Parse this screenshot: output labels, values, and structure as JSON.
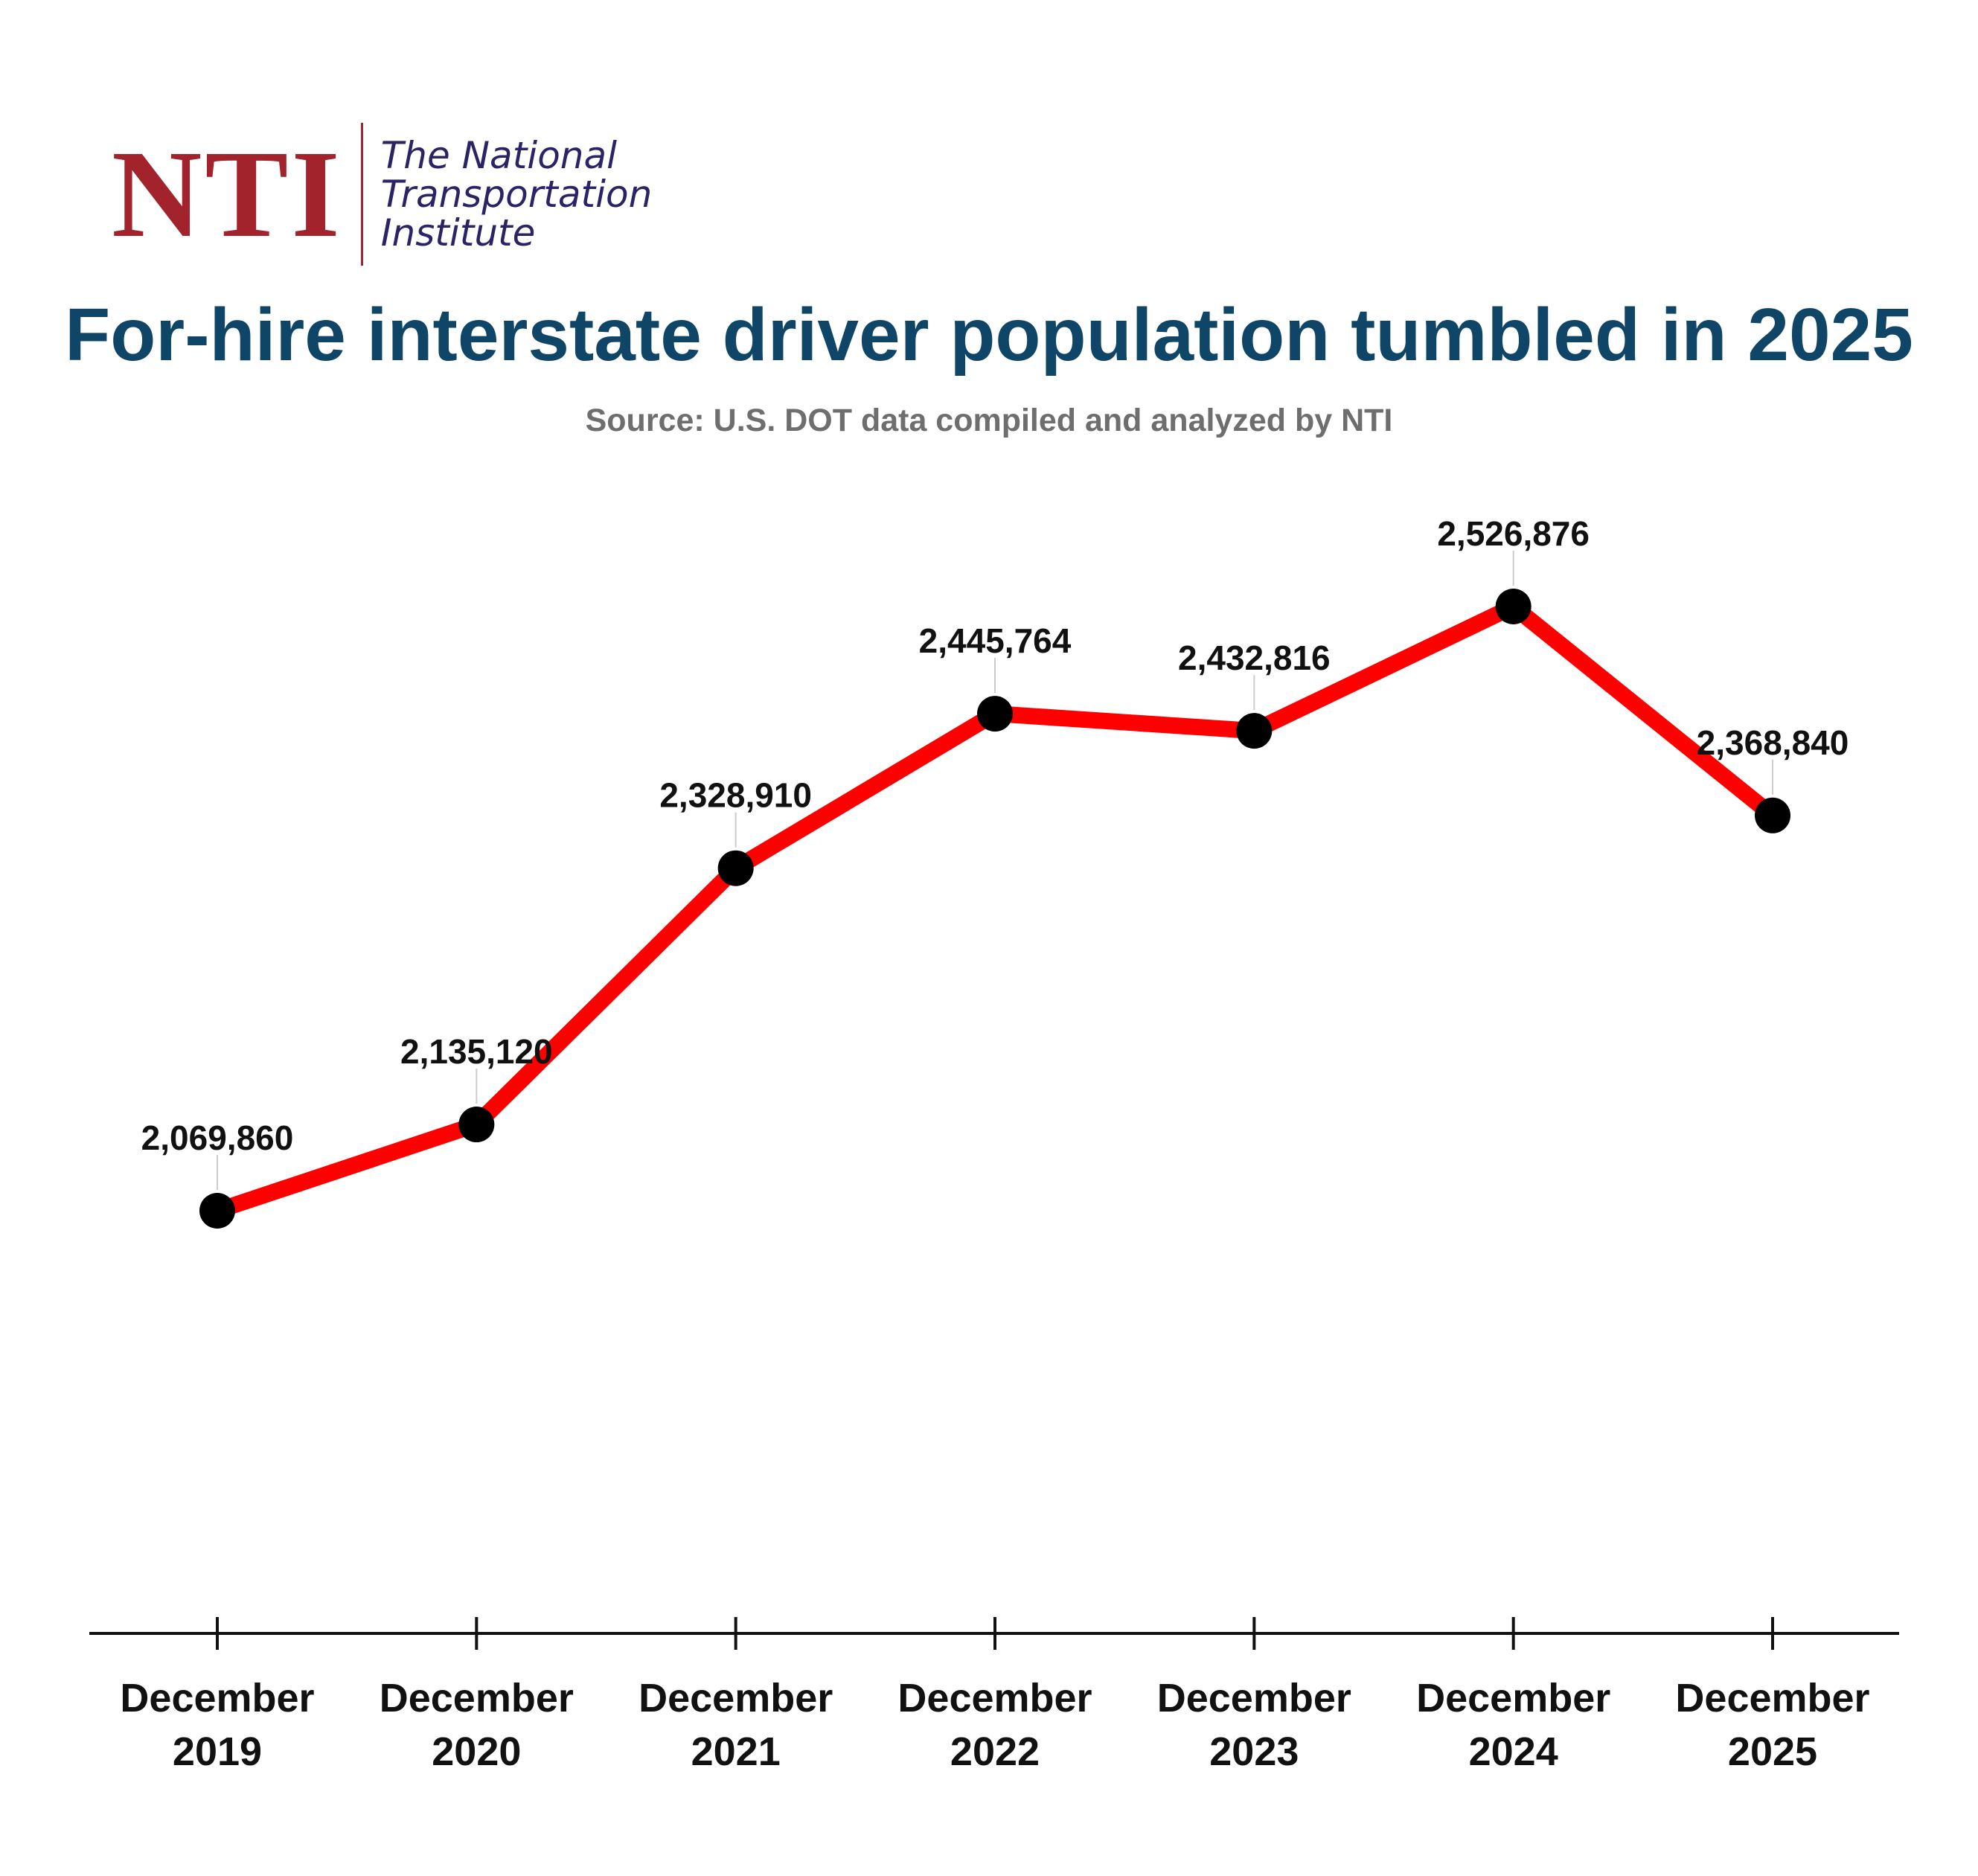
{
  "logo": {
    "mark": "NTI",
    "line1": "The National",
    "line2": "Transportation",
    "line3": "Institute"
  },
  "colors": {
    "brand_red": "#a3232c",
    "brand_navy": "#2a2466",
    "title": "#0f4567",
    "subtitle": "#6e6e6e",
    "line": "#ff0000",
    "marker": "#000000"
  },
  "chart_data": {
    "type": "line",
    "title": "For-hire interstate driver population tumbled in 2025",
    "subtitle": "Source: U.S. DOT data compiled and analyzed by NTI",
    "categories": [
      [
        "December",
        "2019"
      ],
      [
        "December",
        "2020"
      ],
      [
        "December",
        "2021"
      ],
      [
        "December",
        "2022"
      ],
      [
        "December",
        "2023"
      ],
      [
        "December",
        "2024"
      ],
      [
        "December",
        "2025"
      ]
    ],
    "values": [
      2069860,
      2135120,
      2328910,
      2445764,
      2432816,
      2526876,
      2368840
    ],
    "data_labels": [
      "2,069,860",
      "2,135,120",
      "2,328,910",
      "2,445,764",
      "2,432,816",
      "2,526,876",
      "2,368,840"
    ],
    "xlabel": "",
    "ylabel": "",
    "ylim": [
      1800000,
      2600000
    ],
    "grid": false,
    "legend": "none"
  }
}
